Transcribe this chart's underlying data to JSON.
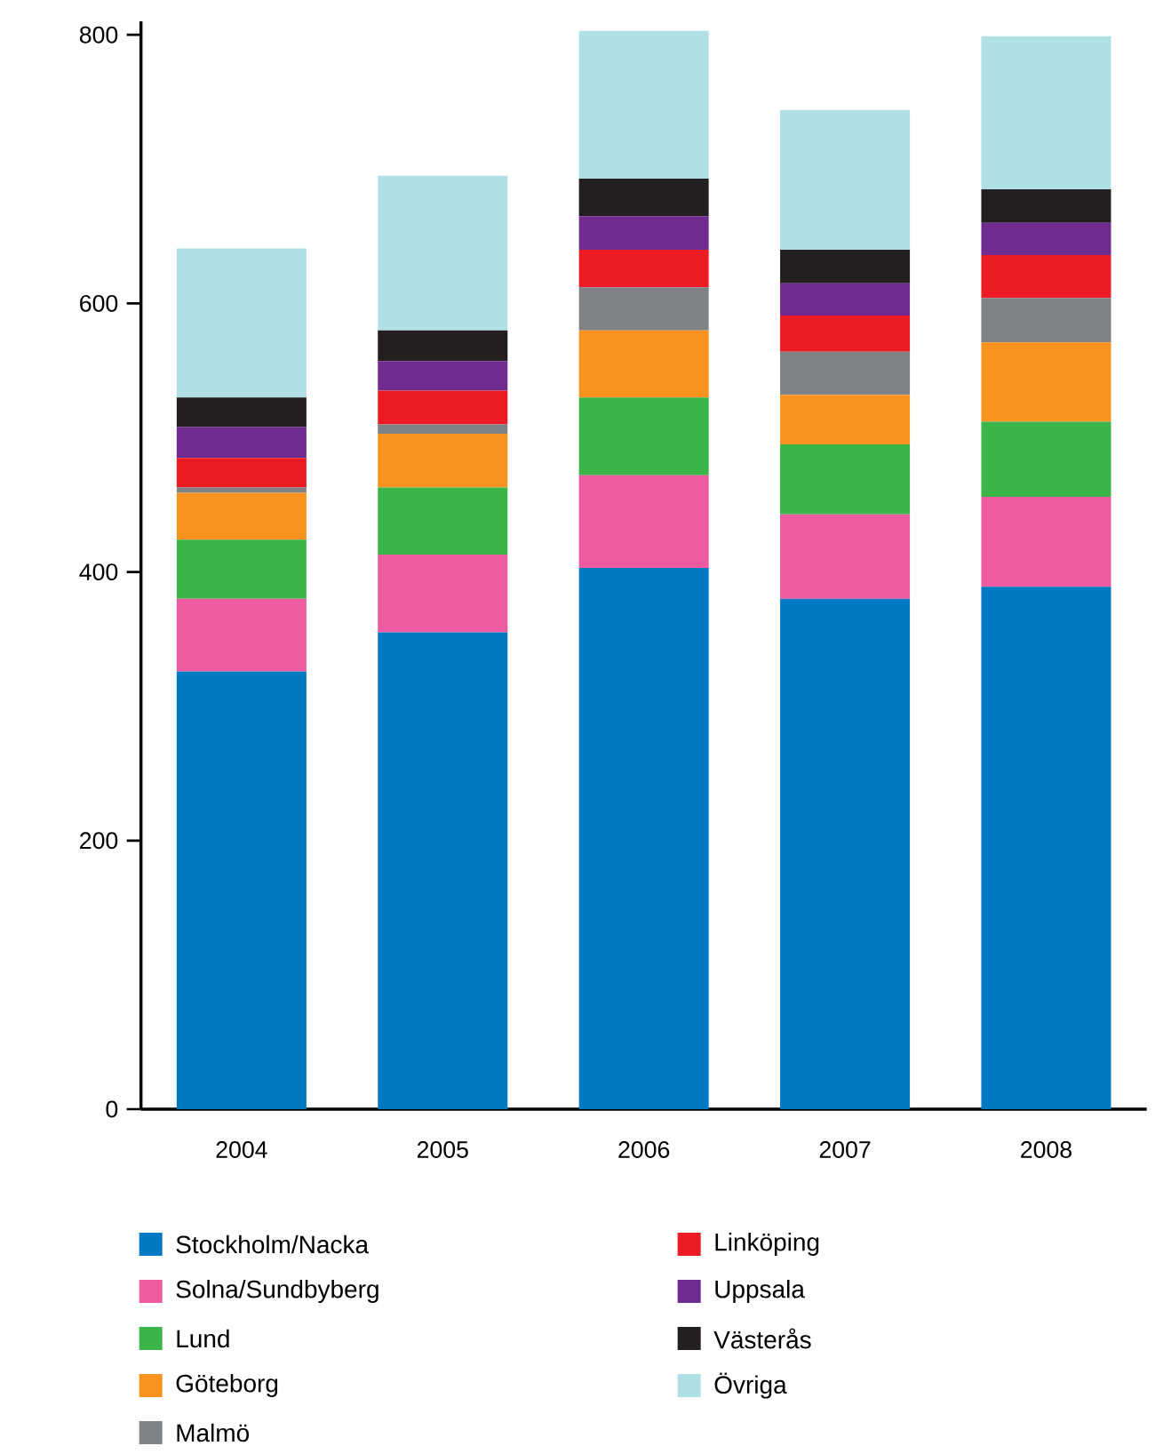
{
  "chart_data": {
    "type": "bar",
    "stacked": true,
    "categories": [
      "2004",
      "2005",
      "2006",
      "2007",
      "2008"
    ],
    "ylim": [
      0,
      810
    ],
    "yticks": [
      0,
      200,
      400,
      600,
      800
    ],
    "legend": "bottom",
    "series": [
      {
        "name": "Stockholm/Nacka",
        "color": "#0079c2",
        "values": [
          326,
          355,
          403,
          380,
          389
        ]
      },
      {
        "name": "Solna/Sundbyberg",
        "color": "#ee5ba0",
        "values": [
          54,
          58,
          69,
          63,
          67
        ]
      },
      {
        "name": "Lund",
        "color": "#3bb54a",
        "values": [
          44,
          50,
          58,
          52,
          56
        ]
      },
      {
        "name": "Göteborg",
        "color": "#f7931e",
        "values": [
          35,
          40,
          50,
          37,
          59
        ]
      },
      {
        "name": "Malmö",
        "color": "#808285",
        "values": [
          4,
          7,
          32,
          32,
          33
        ]
      },
      {
        "name": "Linköping",
        "color": "#ed1c24",
        "values": [
          22,
          25,
          28,
          27,
          32
        ]
      },
      {
        "name": "Uppsala",
        "color": "#6f2b90",
        "values": [
          23,
          22,
          25,
          24,
          24
        ]
      },
      {
        "name": "Västerås",
        "color": "#231f20",
        "values": [
          22,
          23,
          28,
          25,
          25
        ]
      },
      {
        "name": "Övriga",
        "color": "#b0e0e6",
        "values": [
          111,
          115,
          110,
          104,
          114
        ]
      }
    ]
  }
}
